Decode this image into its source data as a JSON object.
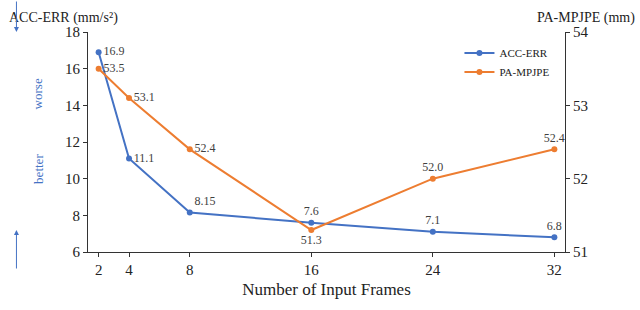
{
  "chart_data": {
    "type": "line",
    "x_label": "Number of Input Frames",
    "y_label": "ACC-ERR (mm/s²)",
    "y2_label": "PA-MPJPE (mm)",
    "annotations": [
      "worse",
      "better"
    ],
    "x": [
      2,
      4,
      8,
      16,
      24,
      32
    ],
    "series": [
      {
        "name": "ACC-ERR",
        "color": "#4472c4",
        "marker": "circle",
        "values": [
          16.9,
          11.1,
          8.15,
          7.6,
          7.1,
          6.8
        ]
      },
      {
        "name": "PA-MPJPE",
        "color": "#ed7d31",
        "marker": "circle",
        "axis": "y2",
        "values": [
          53.5,
          53.1,
          52.4,
          51.3,
          52.0,
          52.4
        ],
        "value_labels": [
          "53.5",
          "53.1",
          "52.4",
          "51.3",
          "52.0",
          "52.4"
        ]
      }
    ],
    "xlim": [
      1.3,
      32.7
    ],
    "xticks": [
      2,
      4,
      8,
      16,
      24,
      32
    ],
    "ylim": [
      6,
      18
    ],
    "yticks": [
      6,
      8,
      10,
      12,
      14,
      16,
      18
    ],
    "y2lim": [
      51,
      54
    ],
    "y2ticks": [
      51,
      52,
      53,
      54
    ],
    "grid": false,
    "legend": "top-right",
    "data_labels": true
  }
}
